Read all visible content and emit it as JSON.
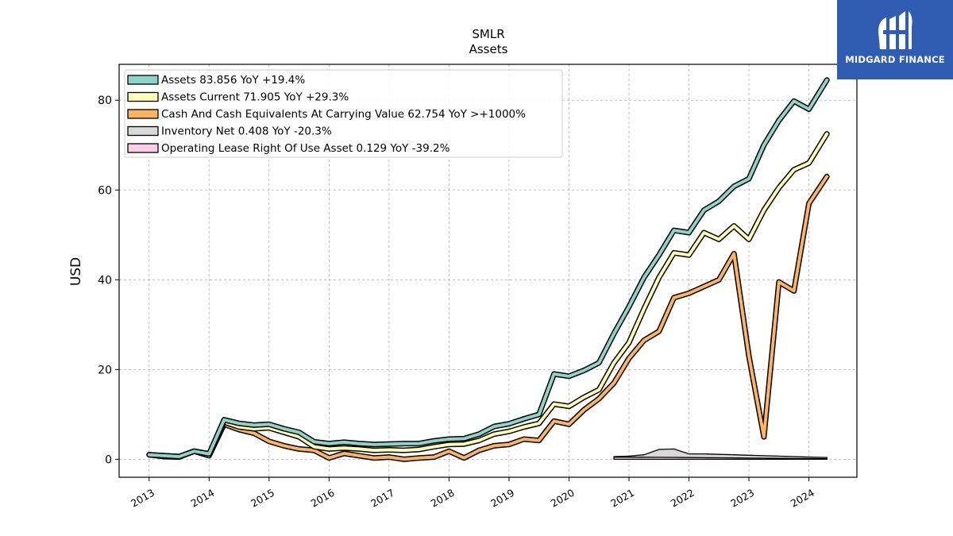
{
  "logo": {
    "text": "MIDGARD FINANCE"
  },
  "chart_data": {
    "type": "line",
    "title": "SMLR",
    "subtitle": "Assets",
    "xlabel": "",
    "ylabel": "USD",
    "xlim": [
      2012.5,
      2024.8
    ],
    "ylim": [
      -4,
      88
    ],
    "xticks": [
      2013,
      2014,
      2015,
      2016,
      2017,
      2018,
      2019,
      2020,
      2021,
      2022,
      2023,
      2024
    ],
    "xtick_labels": [
      "2013",
      "2014",
      "2015",
      "2016",
      "2017",
      "2018",
      "2019",
      "2020",
      "2021",
      "2022",
      "2023",
      "2024"
    ],
    "yticks": [
      0,
      20,
      40,
      60,
      80
    ],
    "ytick_labels": [
      "0",
      "20",
      "40",
      "60",
      "80"
    ],
    "grid": true,
    "legend_position": "top-left",
    "legend": [
      "Assets  83.856 YoY +19.4%",
      "Assets Current  71.905 YoY +29.3%",
      "Cash And Cash Equivalents At Carrying Value  62.754 YoY >+1000%",
      "Inventory Net  0.408 YoY -20.3%",
      "Operating Lease Right Of Use Asset  0.129 YoY -39.2%"
    ],
    "series": [
      {
        "name": "Assets",
        "color": "#8dd3c7",
        "x": [
          2013.0,
          2013.25,
          2013.5,
          2013.75,
          2014.0,
          2014.25,
          2014.5,
          2014.75,
          2015.0,
          2015.25,
          2015.5,
          2015.75,
          2016.0,
          2016.25,
          2016.5,
          2016.75,
          2017.0,
          2017.25,
          2017.5,
          2017.75,
          2018.0,
          2018.25,
          2018.5,
          2018.75,
          2019.0,
          2019.25,
          2019.5,
          2019.75,
          2020.0,
          2020.25,
          2020.5,
          2020.75,
          2021.0,
          2021.25,
          2021.5,
          2021.75,
          2022.0,
          2022.25,
          2022.5,
          2022.75,
          2023.0,
          2023.25,
          2023.5,
          2023.75,
          2024.0,
          2024.3
        ],
        "values": [
          1.0,
          0.8,
          0.6,
          1.8,
          1.2,
          8.8,
          8.0,
          7.6,
          7.8,
          6.8,
          6.0,
          3.9,
          3.5,
          3.8,
          3.5,
          3.3,
          3.4,
          3.5,
          3.5,
          4.1,
          4.5,
          4.6,
          5.6,
          7.3,
          7.9,
          9.0,
          10.0,
          19.0,
          18.5,
          19.8,
          21.5,
          28.0,
          34.0,
          40.5,
          45.5,
          51.0,
          50.5,
          55.5,
          57.5,
          60.8,
          62.5,
          70.0,
          75.5,
          79.8,
          78.0,
          84.5
        ]
      },
      {
        "name": "Assets Current",
        "color": "#ffffb3",
        "x": [
          2013.0,
          2013.25,
          2013.5,
          2013.75,
          2014.0,
          2014.25,
          2014.5,
          2014.75,
          2015.0,
          2015.25,
          2015.5,
          2015.75,
          2016.0,
          2016.25,
          2016.5,
          2016.75,
          2017.0,
          2017.25,
          2017.5,
          2017.75,
          2018.0,
          2018.25,
          2018.5,
          2018.75,
          2019.0,
          2019.25,
          2019.5,
          2019.75,
          2020.0,
          2020.25,
          2020.5,
          2020.75,
          2021.0,
          2021.25,
          2021.5,
          2021.75,
          2022.0,
          2022.25,
          2022.5,
          2022.75,
          2023.0,
          2023.25,
          2023.5,
          2023.75,
          2024.0,
          2024.3
        ],
        "values": [
          1.0,
          0.8,
          0.6,
          1.8,
          1.2,
          8.3,
          7.2,
          6.8,
          7.0,
          6.0,
          5.0,
          2.8,
          2.3,
          2.5,
          2.3,
          2.0,
          2.1,
          2.0,
          2.2,
          2.8,
          3.3,
          3.4,
          4.2,
          5.6,
          6.2,
          7.2,
          8.0,
          12.3,
          11.8,
          13.8,
          15.5,
          21.5,
          26.0,
          33.5,
          40.5,
          46.0,
          45.5,
          50.5,
          49.0,
          52.0,
          49.0,
          55.5,
          60.5,
          64.5,
          66.0,
          72.5
        ]
      },
      {
        "name": "Cash And Cash Equivalents At Carrying Value",
        "color": "#fdb462",
        "x": [
          2013.0,
          2013.25,
          2013.5,
          2013.75,
          2014.0,
          2014.25,
          2014.5,
          2014.75,
          2015.0,
          2015.25,
          2015.5,
          2015.75,
          2016.0,
          2016.25,
          2016.5,
          2016.75,
          2017.0,
          2017.25,
          2017.5,
          2017.75,
          2018.0,
          2018.25,
          2018.5,
          2018.75,
          2019.0,
          2019.25,
          2019.5,
          2019.75,
          2020.0,
          2020.25,
          2020.5,
          2020.75,
          2021.0,
          2021.25,
          2021.5,
          2021.75,
          2022.0,
          2022.25,
          2022.5,
          2022.75,
          2023.0,
          2023.25,
          2023.5,
          2023.75,
          2024.0,
          2024.3
        ],
        "values": [
          1.0,
          0.6,
          0.5,
          1.8,
          0.8,
          7.8,
          6.6,
          5.8,
          4.0,
          3.0,
          2.3,
          2.0,
          0.3,
          1.3,
          0.8,
          0.3,
          0.5,
          0.0,
          0.3,
          0.5,
          1.8,
          0.3,
          2.0,
          3.0,
          3.3,
          4.5,
          4.2,
          8.5,
          7.8,
          11.0,
          13.5,
          17.0,
          22.5,
          26.5,
          28.5,
          36.0,
          37.0,
          38.5,
          40.0,
          45.8,
          23.0,
          5.0,
          39.5,
          37.5,
          57.0,
          63.0
        ]
      },
      {
        "name": "Inventory Net",
        "color": "#d9d9d9",
        "x": [
          2020.75,
          2021.0,
          2021.25,
          2021.5,
          2021.75,
          2022.0,
          2022.25,
          2022.5,
          2022.75,
          2023.0,
          2023.25,
          2023.5,
          2023.75,
          2024.0,
          2024.3
        ],
        "values": [
          0.6,
          0.7,
          1.0,
          2.2,
          2.3,
          1.2,
          1.2,
          1.1,
          1.0,
          0.9,
          0.8,
          0.7,
          0.6,
          0.5,
          0.41
        ]
      },
      {
        "name": "Operating Lease Right Of Use Asset",
        "color": "#fccde5",
        "x": [
          2020.75,
          2021.0,
          2021.25,
          2021.5,
          2021.75,
          2022.0,
          2022.25,
          2022.5,
          2022.75,
          2023.0,
          2023.25,
          2023.5,
          2023.75,
          2024.0,
          2024.3
        ],
        "values": [
          0.5,
          0.48,
          0.46,
          0.44,
          0.42,
          0.39,
          0.36,
          0.33,
          0.3,
          0.27,
          0.24,
          0.21,
          0.18,
          0.15,
          0.13
        ]
      }
    ]
  }
}
